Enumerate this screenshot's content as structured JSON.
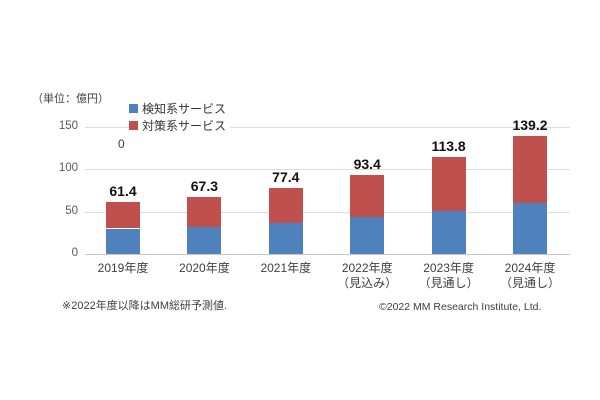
{
  "chart_data": {
    "type": "bar",
    "subtype": "stacked-column",
    "unit_label": "（単位：億円）",
    "categories": [
      "2019年度",
      "2020年度",
      "2021年度",
      "2022年度",
      "2023年度",
      "2024年度"
    ],
    "category_sublabels": [
      "",
      "",
      "",
      "（見込み）",
      "（見通し）",
      "（見通し）"
    ],
    "series": [
      {
        "name": "検知系サービス",
        "color": "#4F81BD",
        "values": [
          30.0,
          32.0,
          36.5,
          43.5,
          50.5,
          60.0
        ]
      },
      {
        "name": "対策系サービス",
        "color": "#C0504D",
        "values": [
          31.4,
          35.3,
          40.9,
          49.9,
          63.3,
          79.2
        ]
      }
    ],
    "totals": [
      "61.4",
      "67.3",
      "77.4",
      "93.4",
      "113.8",
      "139.2"
    ],
    "y_ticks": [
      0,
      50,
      100,
      150
    ],
    "ylim": [
      0,
      170
    ],
    "grid": true,
    "legend_position": "top-inside",
    "stray_label": "0",
    "colors": {
      "detection_series": "#4F81BD",
      "countermeasure_series": "#C0504D",
      "gridline": "#DCDCDC",
      "axis_line": "#C9C9C9",
      "axis_text": "#595959",
      "data_label": "#111111"
    }
  },
  "footer": {
    "note": "※2022年度以降はMM総研予測値.",
    "copyright": "©2022 MM Research Institute, Ltd."
  }
}
